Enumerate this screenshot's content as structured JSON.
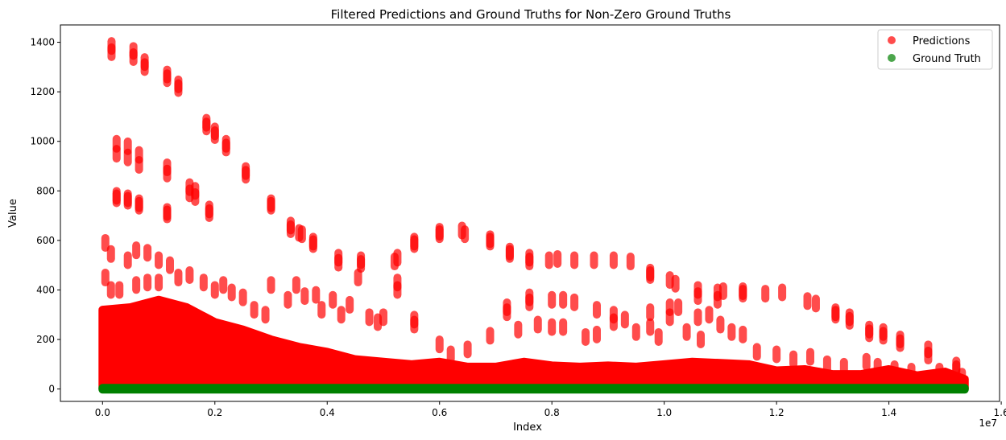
{
  "chart_data": {
    "type": "scatter",
    "title": "Filtered Predictions and Ground Truths for Non-Zero Ground Truths",
    "xlabel": "Index",
    "ylabel": "Value",
    "x_multiplier_label": "1e7",
    "xlim": [
      -0.075,
      1.597
    ],
    "ylim": [
      -50,
      1470
    ],
    "xticks": [
      0.0,
      0.2,
      0.4,
      0.6,
      0.8,
      1.0,
      1.2,
      1.4,
      1.6
    ],
    "xtick_labels": [
      "0.0",
      "0.2",
      "0.4",
      "0.6",
      "0.8",
      "1.0",
      "1.2",
      "1.4",
      "1.6"
    ],
    "yticks": [
      0,
      200,
      400,
      600,
      800,
      1000,
      1200,
      1400
    ],
    "ytick_labels": [
      "0",
      "200",
      "400",
      "600",
      "800",
      "1000",
      "1200",
      "1400"
    ],
    "grid": false,
    "legend_position": "top-right",
    "x_range_covered": [
      0.0,
      1.535
    ],
    "series": [
      {
        "name": "Predictions",
        "color": "#ff0000",
        "alpha": 0.7,
        "dense_band_upper_envelope": [
          [
            0.0,
            320
          ],
          [
            0.05,
            330
          ],
          [
            0.1,
            360
          ],
          [
            0.15,
            330
          ],
          [
            0.2,
            270
          ],
          [
            0.25,
            240
          ],
          [
            0.3,
            200
          ],
          [
            0.35,
            170
          ],
          [
            0.4,
            150
          ],
          [
            0.45,
            120
          ],
          [
            0.5,
            110
          ],
          [
            0.55,
            100
          ],
          [
            0.6,
            110
          ],
          [
            0.65,
            90
          ],
          [
            0.7,
            90
          ],
          [
            0.75,
            110
          ],
          [
            0.8,
            95
          ],
          [
            0.85,
            90
          ],
          [
            0.9,
            95
          ],
          [
            0.95,
            90
          ],
          [
            1.0,
            100
          ],
          [
            1.05,
            110
          ],
          [
            1.1,
            105
          ],
          [
            1.15,
            100
          ],
          [
            1.2,
            75
          ],
          [
            1.25,
            80
          ],
          [
            1.3,
            60
          ],
          [
            1.35,
            60
          ],
          [
            1.4,
            80
          ],
          [
            1.45,
            55
          ],
          [
            1.5,
            70
          ],
          [
            1.535,
            40
          ]
        ],
        "values": [
          [
            0.016,
            1385
          ],
          [
            0.016,
            1360
          ],
          [
            0.055,
            1365
          ],
          [
            0.055,
            1340
          ],
          [
            0.075,
            1320
          ],
          [
            0.075,
            1300
          ],
          [
            0.115,
            1270
          ],
          [
            0.115,
            1255
          ],
          [
            0.135,
            1230
          ],
          [
            0.135,
            1215
          ],
          [
            0.185,
            1075
          ],
          [
            0.185,
            1060
          ],
          [
            0.2,
            1040
          ],
          [
            0.2,
            1025
          ],
          [
            0.22,
            990
          ],
          [
            0.22,
            975
          ],
          [
            0.255,
            880
          ],
          [
            0.255,
            865
          ],
          [
            0.025,
            990
          ],
          [
            0.025,
            950
          ],
          [
            0.045,
            980
          ],
          [
            0.045,
            935
          ],
          [
            0.065,
            945
          ],
          [
            0.065,
            905
          ],
          [
            0.115,
            895
          ],
          [
            0.115,
            870
          ],
          [
            0.155,
            815
          ],
          [
            0.155,
            790
          ],
          [
            0.165,
            800
          ],
          [
            0.165,
            775
          ],
          [
            0.3,
            750
          ],
          [
            0.3,
            740
          ],
          [
            0.025,
            780
          ],
          [
            0.025,
            770
          ],
          [
            0.045,
            770
          ],
          [
            0.045,
            760
          ],
          [
            0.065,
            750
          ],
          [
            0.065,
            740
          ],
          [
            0.115,
            715
          ],
          [
            0.115,
            705
          ],
          [
            0.19,
            725
          ],
          [
            0.19,
            710
          ],
          [
            0.335,
            660
          ],
          [
            0.335,
            645
          ],
          [
            0.35,
            630
          ],
          [
            0.355,
            625
          ],
          [
            0.375,
            595
          ],
          [
            0.375,
            585
          ],
          [
            0.42,
            530
          ],
          [
            0.42,
            510
          ],
          [
            0.46,
            520
          ],
          [
            0.46,
            505
          ],
          [
            0.52,
            515
          ],
          [
            0.525,
            530
          ],
          [
            0.555,
            595
          ],
          [
            0.555,
            585
          ],
          [
            0.6,
            635
          ],
          [
            0.6,
            625
          ],
          [
            0.64,
            640
          ],
          [
            0.645,
            625
          ],
          [
            0.69,
            605
          ],
          [
            0.69,
            595
          ],
          [
            0.725,
            555
          ],
          [
            0.725,
            545
          ],
          [
            0.76,
            530
          ],
          [
            0.76,
            515
          ],
          [
            0.795,
            520
          ],
          [
            0.81,
            525
          ],
          [
            0.84,
            520
          ],
          [
            0.875,
            520
          ],
          [
            0.91,
            520
          ],
          [
            0.94,
            515
          ],
          [
            0.975,
            470
          ],
          [
            0.975,
            460
          ],
          [
            1.01,
            440
          ],
          [
            1.02,
            425
          ],
          [
            1.06,
            400
          ],
          [
            1.06,
            375
          ],
          [
            1.095,
            390
          ],
          [
            1.105,
            395
          ],
          [
            1.14,
            395
          ],
          [
            1.14,
            385
          ],
          [
            1.18,
            385
          ],
          [
            1.21,
            390
          ],
          [
            1.255,
            355
          ],
          [
            1.27,
            345
          ],
          [
            1.305,
            310
          ],
          [
            1.305,
            300
          ],
          [
            1.33,
            290
          ],
          [
            1.33,
            275
          ],
          [
            1.365,
            240
          ],
          [
            1.365,
            225
          ],
          [
            1.39,
            230
          ],
          [
            1.39,
            215
          ],
          [
            1.42,
            200
          ],
          [
            1.42,
            185
          ],
          [
            1.47,
            160
          ],
          [
            1.47,
            135
          ],
          [
            1.52,
            95
          ],
          [
            1.52,
            80
          ],
          [
            0.005,
            590
          ],
          [
            0.005,
            450
          ],
          [
            0.005,
            300
          ],
          [
            0.015,
            545
          ],
          [
            0.015,
            400
          ],
          [
            0.03,
            400
          ],
          [
            0.045,
            520
          ],
          [
            0.06,
            560
          ],
          [
            0.06,
            420
          ],
          [
            0.08,
            550
          ],
          [
            0.08,
            430
          ],
          [
            0.1,
            520
          ],
          [
            0.1,
            430
          ],
          [
            0.12,
            500
          ],
          [
            0.135,
            450
          ],
          [
            0.155,
            460
          ],
          [
            0.18,
            430
          ],
          [
            0.2,
            400
          ],
          [
            0.215,
            420
          ],
          [
            0.23,
            390
          ],
          [
            0.25,
            370
          ],
          [
            0.27,
            320
          ],
          [
            0.29,
            300
          ],
          [
            0.3,
            420
          ],
          [
            0.33,
            360
          ],
          [
            0.345,
            420
          ],
          [
            0.36,
            375
          ],
          [
            0.38,
            380
          ],
          [
            0.39,
            320
          ],
          [
            0.41,
            360
          ],
          [
            0.425,
            300
          ],
          [
            0.44,
            340
          ],
          [
            0.455,
            450
          ],
          [
            0.475,
            290
          ],
          [
            0.49,
            270
          ],
          [
            0.5,
            290
          ],
          [
            0.525,
            430
          ],
          [
            0.525,
            400
          ],
          [
            0.555,
            280
          ],
          [
            0.555,
            260
          ],
          [
            0.6,
            180
          ],
          [
            0.62,
            140
          ],
          [
            0.65,
            160
          ],
          [
            0.69,
            215
          ],
          [
            0.72,
            330
          ],
          [
            0.72,
            310
          ],
          [
            0.74,
            240
          ],
          [
            0.76,
            370
          ],
          [
            0.76,
            350
          ],
          [
            0.775,
            260
          ],
          [
            0.8,
            360
          ],
          [
            0.8,
            250
          ],
          [
            0.82,
            360
          ],
          [
            0.82,
            250
          ],
          [
            0.84,
            350
          ],
          [
            0.86,
            210
          ],
          [
            0.88,
            320
          ],
          [
            0.88,
            220
          ],
          [
            0.91,
            300
          ],
          [
            0.91,
            270
          ],
          [
            0.93,
            280
          ],
          [
            0.95,
            230
          ],
          [
            0.975,
            310
          ],
          [
            0.975,
            250
          ],
          [
            0.99,
            210
          ],
          [
            1.01,
            330
          ],
          [
            1.01,
            290
          ],
          [
            1.025,
            330
          ],
          [
            1.04,
            230
          ],
          [
            1.06,
            290
          ],
          [
            1.065,
            200
          ],
          [
            1.08,
            300
          ],
          [
            1.095,
            360
          ],
          [
            1.1,
            260
          ],
          [
            1.12,
            230
          ],
          [
            1.14,
            220
          ],
          [
            1.165,
            150
          ],
          [
            1.2,
            140
          ],
          [
            1.23,
            120
          ],
          [
            1.26,
            130
          ],
          [
            1.29,
            100
          ],
          [
            1.32,
            90
          ],
          [
            1.36,
            110
          ],
          [
            1.38,
            90
          ],
          [
            1.41,
            80
          ],
          [
            1.44,
            70
          ],
          [
            1.49,
            70
          ],
          [
            1.53,
            50
          ]
        ]
      },
      {
        "name": "Ground Truth",
        "color": "#008000",
        "alpha": 0.7,
        "values_description_free": true,
        "band": [
          [
            0.0,
            1
          ],
          [
            1.535,
            1
          ]
        ]
      }
    ]
  }
}
